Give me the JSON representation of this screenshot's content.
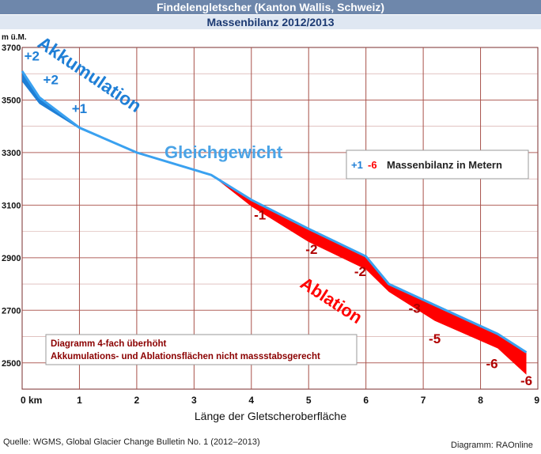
{
  "header": {
    "title": "Findelengletscher (Kanton Wallis, Schweiz)",
    "subtitle": "Massenbilanz 2012/2013"
  },
  "colors": {
    "accumulation": "#1f7fd6",
    "surface_line": "#3aa1f0",
    "ablation": "#ff0000",
    "grid": "#a8514a",
    "equilibrium_label": "#4aa3e6",
    "dark_red": "#8b0000"
  },
  "chart_data": {
    "type": "area",
    "xlabel": "Länge der Gletscheroberfläche",
    "ylabel": "m ü.M.",
    "xlim": [
      0,
      9
    ],
    "ylim": [
      2400,
      3700
    ],
    "x_ticks": [
      {
        "value": 0,
        "label": "0 km"
      },
      {
        "value": 1,
        "label": "1"
      },
      {
        "value": 2,
        "label": "2"
      },
      {
        "value": 3,
        "label": "3"
      },
      {
        "value": 4,
        "label": "4"
      },
      {
        "value": 5,
        "label": "5"
      },
      {
        "value": 6,
        "label": "6"
      },
      {
        "value": 7,
        "label": "7"
      },
      {
        "value": 8,
        "label": "8"
      },
      {
        "value": 9,
        "label": "9"
      }
    ],
    "y_ticks": [
      {
        "value": 3700,
        "label": "3700"
      },
      {
        "value": 3500,
        "label": "3500"
      },
      {
        "value": 3300,
        "label": "3300"
      },
      {
        "value": 3100,
        "label": "3100"
      },
      {
        "value": 2900,
        "label": "2900"
      },
      {
        "value": 2700,
        "label": "2700"
      },
      {
        "value": 2500,
        "label": "2500"
      }
    ],
    "surface_top": [
      [
        0,
        3610
      ],
      [
        0.3,
        3510
      ],
      [
        1,
        3395
      ],
      [
        2,
        3300
      ],
      [
        3.3,
        3215
      ],
      [
        4,
        3120
      ],
      [
        5,
        3010
      ],
      [
        6,
        2905
      ],
      [
        6.4,
        2800
      ],
      [
        7.2,
        2720
      ],
      [
        8.3,
        2610
      ],
      [
        8.8,
        2540
      ]
    ],
    "accumulation_base": [
      [
        0,
        3570
      ],
      [
        0.3,
        3485
      ],
      [
        1,
        3390
      ],
      [
        2,
        3298
      ],
      [
        3.3,
        3215
      ]
    ],
    "ablation_base": [
      [
        3.3,
        3215
      ],
      [
        4,
        3095
      ],
      [
        5,
        2960
      ],
      [
        6,
        2855
      ],
      [
        6.4,
        2770
      ],
      [
        7.2,
        2660
      ],
      [
        8.3,
        2555
      ],
      [
        8.8,
        2455
      ]
    ],
    "bilanz_labels": [
      {
        "text": "+2",
        "x": 0.17,
        "y": 3650,
        "color": "blue"
      },
      {
        "text": "+2",
        "x": 0.5,
        "y": 3560,
        "color": "blue"
      },
      {
        "text": "+1",
        "x": 1.0,
        "y": 3450,
        "color": "blue"
      },
      {
        "text": "-1",
        "x": 4.15,
        "y": 3045,
        "color": "red"
      },
      {
        "text": "-2",
        "x": 5.05,
        "y": 2915,
        "color": "red"
      },
      {
        "text": "-2",
        "x": 5.9,
        "y": 2830,
        "color": "red"
      },
      {
        "text": "-3",
        "x": 6.85,
        "y": 2690,
        "color": "red"
      },
      {
        "text": "-5",
        "x": 7.2,
        "y": 2575,
        "color": "red"
      },
      {
        "text": "-6",
        "x": 8.2,
        "y": 2480,
        "color": "red"
      },
      {
        "text": "-6",
        "x": 8.8,
        "y": 2415,
        "color": "red"
      }
    ],
    "annotations": {
      "accumulation": "Akkumulation",
      "equilibrium": "Gleichgewicht",
      "ablation": "Ablation"
    },
    "legend": {
      "pos": "+1",
      "neg": "-6",
      "text": "Massenbilanz in Metern",
      "placement": "top-right"
    },
    "note": {
      "line1": "Diagramm 4-fach überhöht",
      "line2": "Akkumulations- und Ablationsflächen nicht massstabsgerecht"
    }
  },
  "footer": {
    "source": "Quelle: WGMS, Global Glacier Change Bulletin No. 1 (2012–2013)",
    "credit": "Diagramm: RAOnline"
  }
}
